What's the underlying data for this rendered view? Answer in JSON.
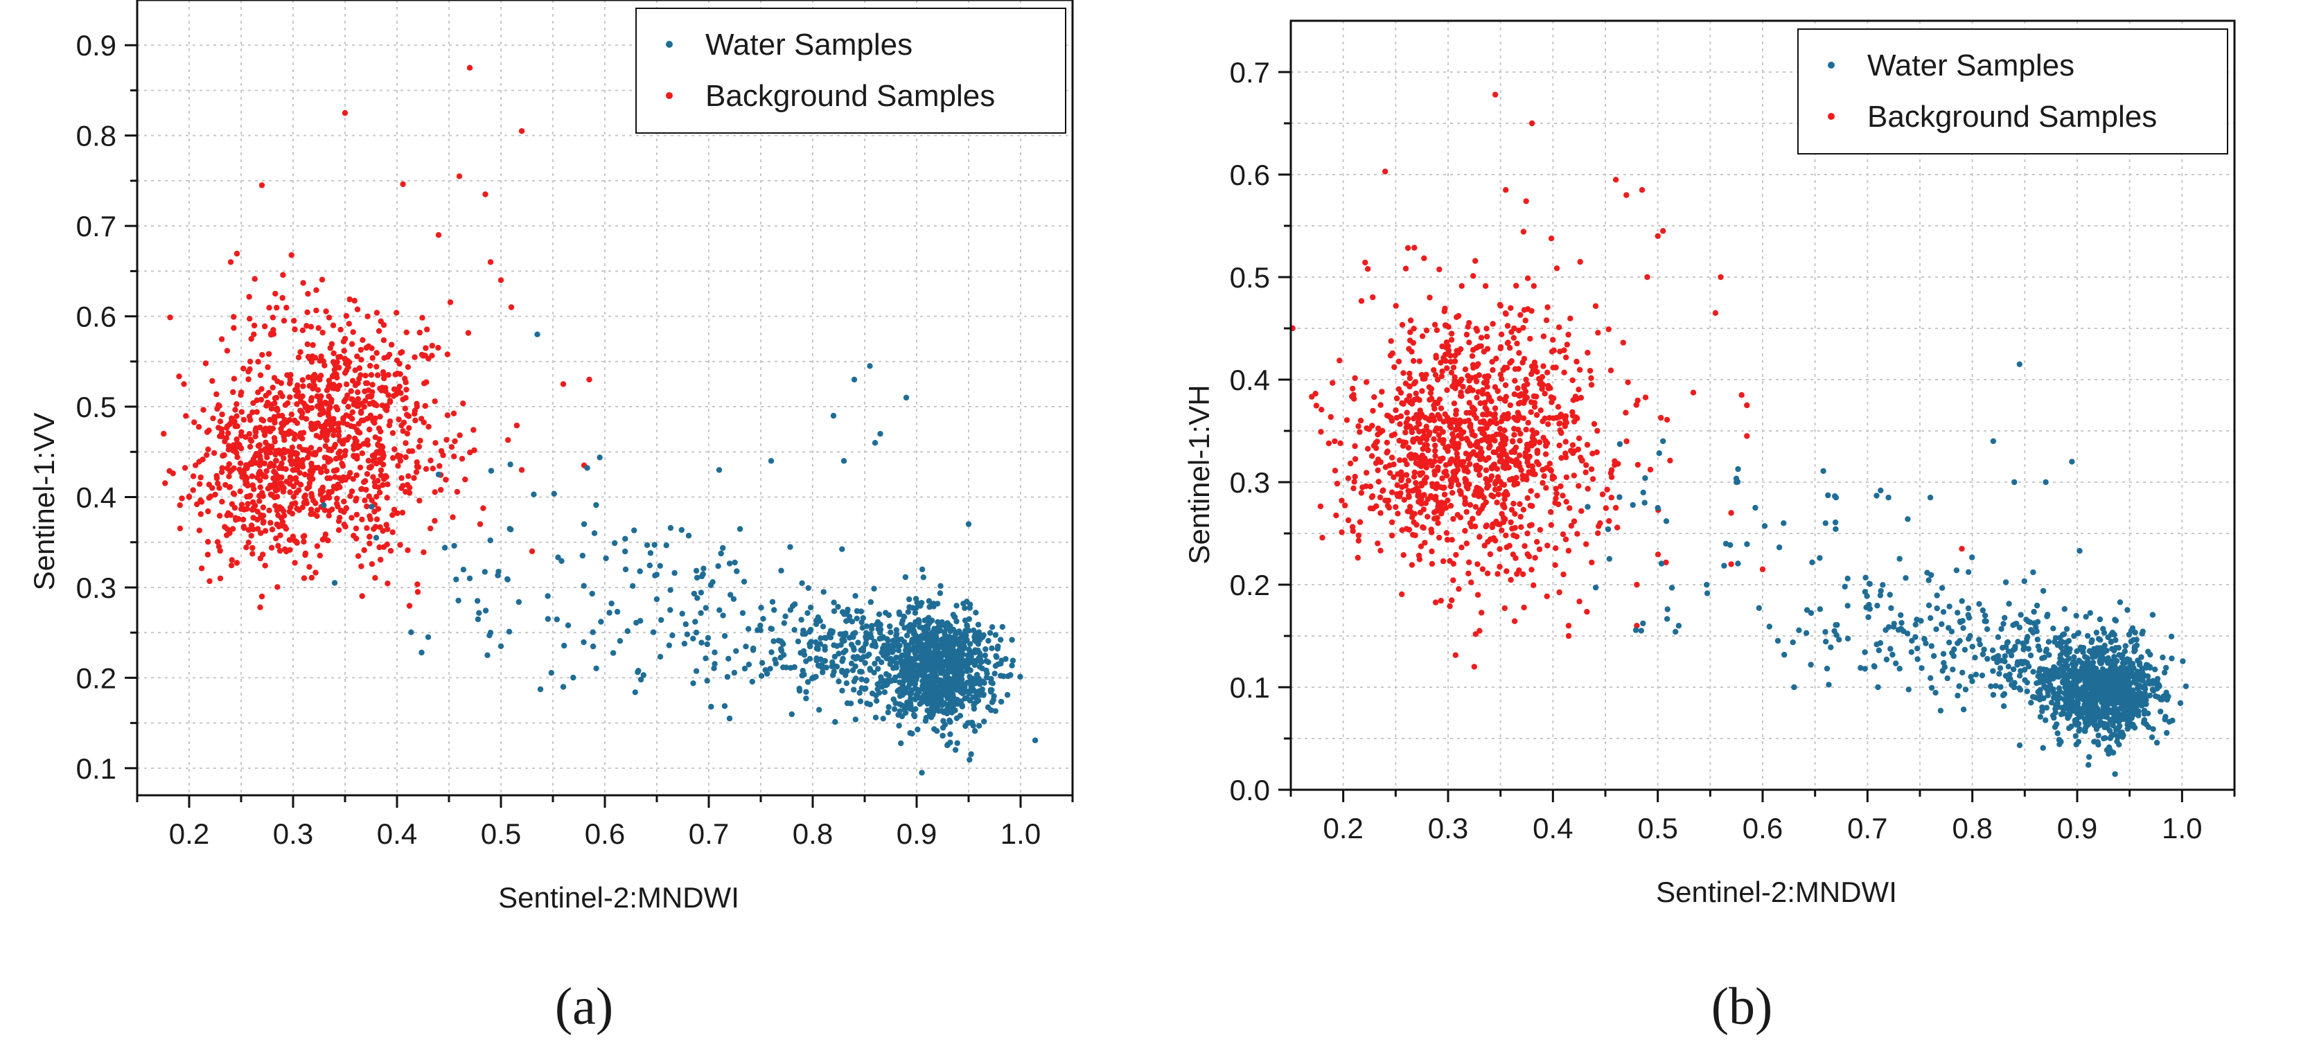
{
  "colors": {
    "water": "#1f6d96",
    "background": "#ee1c1c",
    "axis": "#111111",
    "grid": "#c8c8c8"
  },
  "chart_data": [
    {
      "id": "a",
      "type": "scatter",
      "caption": "(a)",
      "xlabel": "Sentinel-2:MNDWI",
      "ylabel": "Sentinel-1:VV",
      "xlim": [
        0.15,
        1.05
      ],
      "ylim": [
        0.07,
        0.95
      ],
      "xticks": [
        0.2,
        0.3,
        0.4,
        0.5,
        0.6,
        0.7,
        0.8,
        0.9,
        1.0
      ],
      "xtick_labels": [
        "0.2",
        "0.3",
        "0.4",
        "0.5",
        "0.6",
        "0.7",
        "0.8",
        "0.9",
        "1.0"
      ],
      "yticks": [
        0.1,
        0.2,
        0.3,
        0.4,
        0.5,
        0.6,
        0.7,
        0.8,
        0.9
      ],
      "ytick_labels": [
        "0.1",
        "0.2",
        "0.3",
        "0.4",
        "0.5",
        "0.6",
        "0.7",
        "0.8",
        "0.9"
      ],
      "grid": true,
      "legend_position": "top-right",
      "legend": [
        "Water Samples",
        "Background Samples"
      ],
      "series": [
        {
          "name": "Water Samples",
          "color_key": "water",
          "clusters": [
            {
              "cx": 0.92,
              "cy": 0.21,
              "sx": 0.028,
              "sy": 0.032,
              "n": 900
            },
            {
              "cx": 0.84,
              "cy": 0.23,
              "sx": 0.045,
              "sy": 0.028,
              "n": 260
            },
            {
              "cx": 0.7,
              "cy": 0.26,
              "sx": 0.06,
              "sy": 0.045,
              "n": 110
            },
            {
              "cx": 0.55,
              "cy": 0.32,
              "sx": 0.08,
              "sy": 0.06,
              "n": 55
            }
          ],
          "points": [
            [
              0.84,
              0.53
            ],
            [
              0.855,
              0.545
            ],
            [
              0.865,
              0.47
            ],
            [
              0.86,
              0.46
            ],
            [
              0.89,
              0.51
            ],
            [
              0.95,
              0.37
            ],
            [
              0.82,
              0.49
            ],
            [
              0.83,
              0.44
            ],
            [
              0.76,
              0.44
            ],
            [
              0.71,
              0.43
            ],
            [
              0.62,
              0.32
            ],
            [
              0.535,
              0.58
            ],
            [
              0.44,
              0.425
            ],
            [
              0.43,
              0.245
            ],
            [
              0.34,
              0.305
            ],
            [
              0.47,
              0.31
            ],
            [
              0.56,
              0.19
            ],
            [
              0.72,
              0.155
            ],
            [
              0.905,
              0.095
            ],
            [
              0.59,
              0.36
            ],
            [
              0.58,
              0.37
            ],
            [
              0.5,
              0.235
            ],
            [
              0.49,
              0.25
            ],
            [
              0.38,
              0.355
            ]
          ]
        },
        {
          "name": "Background Samples",
          "color_key": "background",
          "clusters": [
            {
              "cx": 0.33,
              "cy": 0.47,
              "sx": 0.058,
              "sy": 0.07,
              "n": 950
            },
            {
              "cx": 0.26,
              "cy": 0.42,
              "sx": 0.03,
              "sy": 0.04,
              "n": 200
            }
          ],
          "points": [
            [
              0.47,
              0.875
            ],
            [
              0.35,
              0.825
            ],
            [
              0.52,
              0.805
            ],
            [
              0.27,
              0.745
            ],
            [
              0.46,
              0.755
            ],
            [
              0.485,
              0.735
            ],
            [
              0.44,
              0.69
            ],
            [
              0.49,
              0.66
            ],
            [
              0.5,
              0.64
            ],
            [
              0.51,
              0.61
            ],
            [
              0.56,
              0.525
            ],
            [
              0.585,
              0.53
            ],
            [
              0.52,
              0.43
            ],
            [
              0.58,
              0.435
            ],
            [
              0.42,
              0.295
            ],
            [
              0.27,
              0.29
            ],
            [
              0.48,
              0.37
            ],
            [
              0.23,
              0.31
            ],
            [
              0.195,
              0.525
            ],
            [
              0.2,
              0.4
            ],
            [
              0.24,
              0.66
            ],
            [
              0.53,
              0.34
            ]
          ]
        }
      ]
    },
    {
      "id": "b",
      "type": "scatter",
      "caption": "(b)",
      "xlabel": "Sentinel-2:MNDWI",
      "ylabel": "Sentinel-1:VH",
      "xlim": [
        0.15,
        1.05
      ],
      "ylim": [
        0.0,
        0.75
      ],
      "xticks": [
        0.2,
        0.3,
        0.4,
        0.5,
        0.6,
        0.7,
        0.8,
        0.9,
        1.0
      ],
      "xtick_labels": [
        "0.2",
        "0.3",
        "0.4",
        "0.5",
        "0.6",
        "0.7",
        "0.8",
        "0.9",
        "1.0"
      ],
      "yticks": [
        0.0,
        0.1,
        0.2,
        0.3,
        0.4,
        0.5,
        0.6,
        0.7
      ],
      "ytick_labels": [
        "0.0",
        "0.1",
        "0.2",
        "0.3",
        "0.4",
        "0.5",
        "0.6",
        "0.7"
      ],
      "grid": true,
      "legend_position": "top-right",
      "legend": [
        "Water Samples",
        "Background Samples"
      ],
      "series": [
        {
          "name": "Water Samples",
          "color_key": "water",
          "clusters": [
            {
              "cx": 0.925,
              "cy": 0.095,
              "sx": 0.026,
              "sy": 0.022,
              "n": 950
            },
            {
              "cx": 0.85,
              "cy": 0.13,
              "sx": 0.05,
              "sy": 0.03,
              "n": 260
            },
            {
              "cx": 0.72,
              "cy": 0.16,
              "sx": 0.05,
              "sy": 0.04,
              "n": 90
            },
            {
              "cx": 0.56,
              "cy": 0.22,
              "sx": 0.08,
              "sy": 0.06,
              "n": 45
            }
          ],
          "points": [
            [
              0.845,
              0.415
            ],
            [
              0.82,
              0.34
            ],
            [
              0.895,
              0.32
            ],
            [
              0.87,
              0.3
            ],
            [
              0.84,
              0.3
            ],
            [
              0.575,
              0.3
            ],
            [
              0.505,
              0.34
            ],
            [
              0.67,
              0.285
            ],
            [
              0.72,
              0.285
            ],
            [
              0.76,
              0.285
            ],
            [
              0.62,
              0.26
            ],
            [
              0.66,
              0.26
            ],
            [
              0.565,
              0.24
            ],
            [
              0.93,
              0.035
            ],
            [
              0.63,
              0.1
            ],
            [
              0.71,
              0.1
            ],
            [
              0.52,
              0.16
            ]
          ]
        },
        {
          "name": "Background Samples",
          "color_key": "background",
          "clusters": [
            {
              "cx": 0.335,
              "cy": 0.345,
              "sx": 0.06,
              "sy": 0.065,
              "n": 1000
            },
            {
              "cx": 0.27,
              "cy": 0.31,
              "sx": 0.035,
              "sy": 0.04,
              "n": 180
            }
          ],
          "points": [
            [
              0.345,
              0.678
            ],
            [
              0.38,
              0.65
            ],
            [
              0.24,
              0.603
            ],
            [
              0.355,
              0.585
            ],
            [
              0.46,
              0.595
            ],
            [
              0.47,
              0.58
            ],
            [
              0.485,
              0.585
            ],
            [
              0.5,
              0.54
            ],
            [
              0.505,
              0.545
            ],
            [
              0.49,
              0.5
            ],
            [
              0.56,
              0.5
            ],
            [
              0.555,
              0.465
            ],
            [
              0.58,
              0.385
            ],
            [
              0.585,
              0.375
            ],
            [
              0.585,
              0.345
            ],
            [
              0.57,
              0.27
            ],
            [
              0.57,
              0.22
            ],
            [
              0.6,
              0.215
            ],
            [
              0.33,
              0.155
            ],
            [
              0.325,
              0.12
            ],
            [
              0.415,
              0.15
            ],
            [
              0.415,
              0.16
            ],
            [
              0.41,
              0.21
            ],
            [
              0.48,
              0.2
            ],
            [
              0.48,
              0.16
            ],
            [
              0.79,
              0.235
            ],
            [
              0.86,
              0.09
            ],
            [
              0.46,
              0.275
            ],
            [
              0.445,
              0.26
            ]
          ]
        }
      ]
    }
  ]
}
